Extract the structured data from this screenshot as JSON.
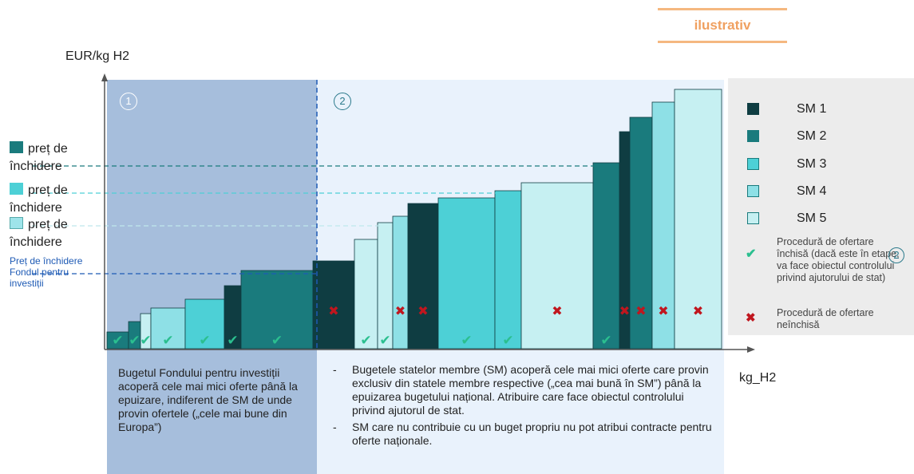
{
  "badge": "ilustrativ",
  "axis": {
    "y_label": "EUR/kg H2",
    "x_label": "kg_H2"
  },
  "zones": {
    "zone1_number": "1",
    "zone2_number": "2"
  },
  "left_legend": [
    {
      "text_a": "preț de",
      "text_b": "închidere",
      "color": "#1A7B7D"
    },
    {
      "text_a": "preț de",
      "text_b": "închidere",
      "color": "#4DD0D6"
    },
    {
      "text_a": "preț de",
      "text_b": "închidere",
      "color": "#9EE4EA"
    }
  ],
  "fund_label": "Preț de închidere Fondul pentru investiții",
  "right_legend": {
    "items": [
      {
        "label": "SM 1",
        "color": "#0F3D42"
      },
      {
        "label": "SM 2",
        "color": "#1A7B7D"
      },
      {
        "label": "SM 3",
        "color": "#4DD0D6"
      },
      {
        "label": "SM 4",
        "color": "#8EE0E6"
      },
      {
        "label": "SM 5",
        "color": "#C6F0F2"
      }
    ],
    "closed_note": "Procedură de ofertare închisă (dacă este în etape, va face obiectul controlului privind ajutorului de stat)",
    "closed_note_marker": "2",
    "open_note": "Procedură de ofertare neînchisă",
    "check_color": "#2BBF8F",
    "cross_color": "#C0161E"
  },
  "box1_text": "Bugetul Fondului pentru investiții acoperă cele mai mici oferte până la epuizare, indiferent de SM de unde provin ofertele („cele mai bune din Europa”)",
  "box2_bullets": [
    "Bugetele statelor membre (SM) acoperă cele mai mici oferte care provin exclusiv din statele membre respective („cea mai bună în SM”) până la epuizarea bugetului național. Atribuire care face obiectul controlului privind ajutorul de stat.",
    "SM care nu contribuie cu un buget propriu nu pot atribui contracte pentru oferte naționale."
  ],
  "bars": [
    {
      "sm": 2,
      "w": 27,
      "h": 21,
      "mark": "check"
    },
    {
      "sm": 2,
      "w": 15,
      "h": 34,
      "mark": "check"
    },
    {
      "sm": 5,
      "w": 13,
      "h": 44,
      "mark": "check"
    },
    {
      "sm": 4,
      "w": 43,
      "h": 51,
      "mark": "check"
    },
    {
      "sm": 3,
      "w": 49,
      "h": 62,
      "mark": "check"
    },
    {
      "sm": 1,
      "w": 21,
      "h": 79,
      "mark": "check"
    },
    {
      "sm": 2,
      "w": 90,
      "h": 98,
      "mark": "check"
    },
    {
      "sm": 1,
      "w": 52,
      "h": 110,
      "mark": "cross"
    },
    {
      "sm": 5,
      "w": 29,
      "h": 137,
      "mark": "check"
    },
    {
      "sm": 5,
      "w": 19,
      "h": 158,
      "mark": "check"
    },
    {
      "sm": 4,
      "w": 19,
      "h": 166,
      "mark": "cross"
    },
    {
      "sm": 1,
      "w": 38,
      "h": 182,
      "mark": "cross"
    },
    {
      "sm": 3,
      "w": 71,
      "h": 189,
      "mark": "check"
    },
    {
      "sm": 3,
      "w": 33,
      "h": 198,
      "mark": "check"
    },
    {
      "sm": 5,
      "w": 90,
      "h": 208,
      "mark": "cross"
    },
    {
      "sm": 2,
      "w": 33,
      "h": 233,
      "mark": "check"
    },
    {
      "sm": 1,
      "w": 13,
      "h": 272,
      "mark": "cross"
    },
    {
      "sm": 2,
      "w": 28,
      "h": 290,
      "mark": "cross"
    },
    {
      "sm": 4,
      "w": 28,
      "h": 309,
      "mark": "cross"
    },
    {
      "sm": 5,
      "w": 59,
      "h": 325,
      "mark": "cross"
    }
  ]
}
